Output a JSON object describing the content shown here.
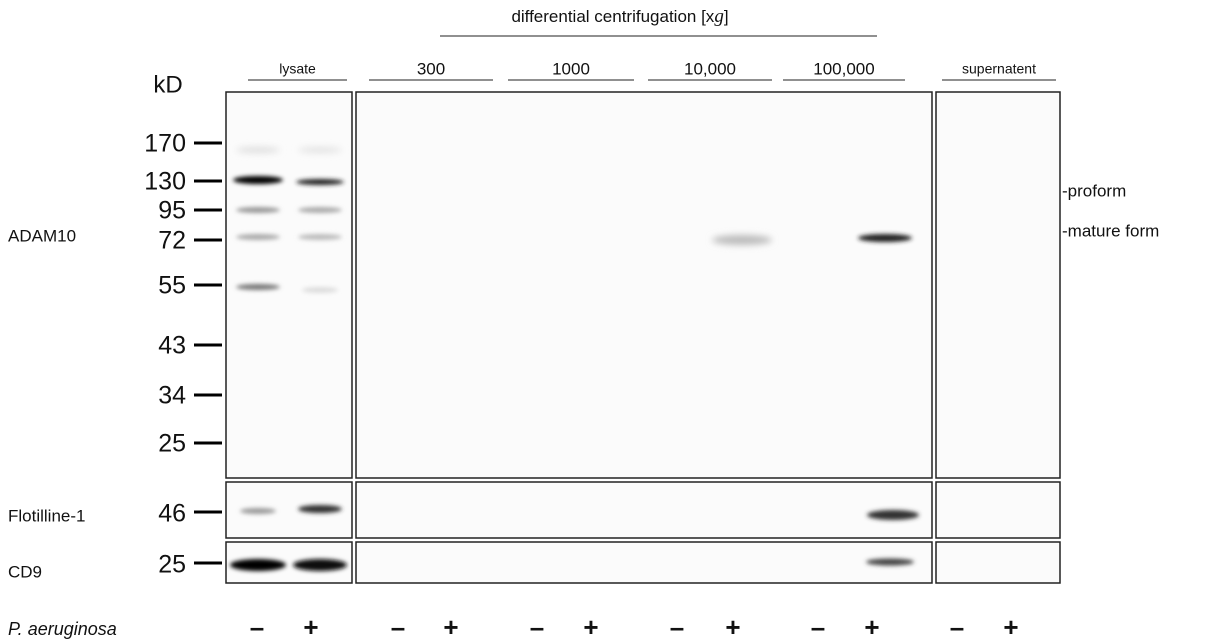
{
  "header": {
    "title_parts": [
      "differential centrifugation [x",
      "g",
      "]"
    ]
  },
  "groups": [
    "lysate",
    "300",
    "1000",
    "10,000",
    "100,000",
    "supernatent"
  ],
  "unit": "kD",
  "markers": [
    "170",
    "130",
    "95",
    "72",
    "55",
    "43",
    "34",
    "25"
  ],
  "blots": [
    {
      "label": "ADAM10"
    },
    {
      "label": "Flotilline-1",
      "marker": "46"
    },
    {
      "label": "CD9",
      "marker": "25"
    }
  ],
  "annotations": [
    "-proform",
    "-mature form"
  ],
  "condition": {
    "label": "P. aeruginosa",
    "lanes": [
      "–",
      "+",
      "–",
      "+",
      "–",
      "+",
      "–",
      "+",
      "–",
      "+",
      "–",
      "+"
    ]
  }
}
